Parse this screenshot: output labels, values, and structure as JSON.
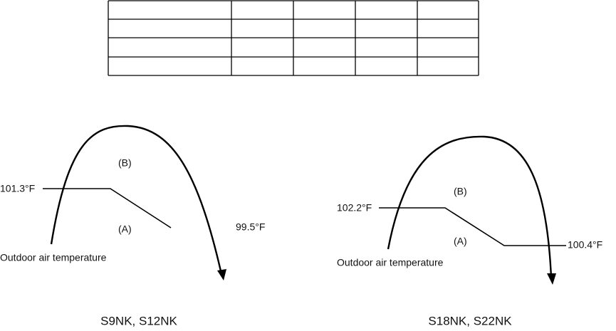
{
  "diagrams": [
    {
      "label_b": "(B)",
      "label_a": "(A)",
      "temp_high": "101.3°F",
      "temp_low": "99.5°F",
      "axis_label": "Outdoor air temperature",
      "caption": "S9NK, S12NK"
    },
    {
      "label_b": "(B)",
      "label_a": "(A)",
      "temp_high": "102.2°F",
      "temp_low": "100.4°F",
      "axis_label": "Outdoor air temperature",
      "caption": "S18NK, S22NK"
    }
  ]
}
